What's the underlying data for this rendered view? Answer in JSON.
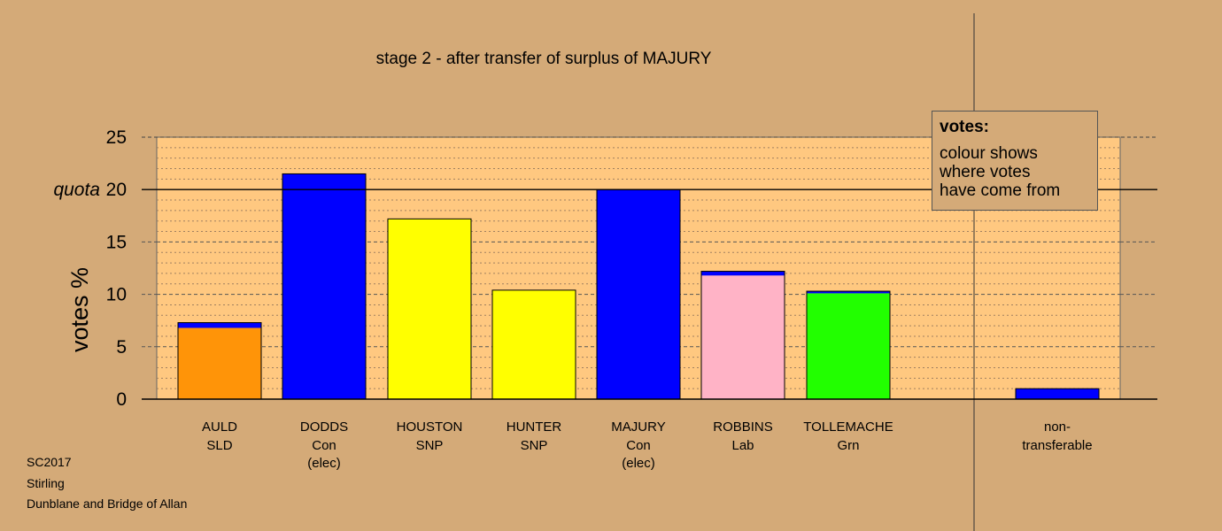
{
  "chart_data": {
    "type": "bar",
    "title": "stage 2 - after transfer of surplus of MAJURY",
    "ylabel": "votes %",
    "ylim": [
      0,
      25
    ],
    "yticks": [
      0,
      5,
      10,
      15,
      20,
      25
    ],
    "quota": {
      "value": 20,
      "label": "quota"
    },
    "categories": [
      {
        "name": "AULD",
        "party": "SLD",
        "note": ""
      },
      {
        "name": "DODDS",
        "party": "Con",
        "note": "(elec)"
      },
      {
        "name": "HOUSTON",
        "party": "SNP",
        "note": ""
      },
      {
        "name": "HUNTER",
        "party": "SNP",
        "note": ""
      },
      {
        "name": "MAJURY",
        "party": "Con",
        "note": "(elec)"
      },
      {
        "name": "ROBBINS",
        "party": "Lab",
        "note": ""
      },
      {
        "name": "TOLLEMACHE",
        "party": "Grn",
        "note": ""
      },
      {
        "name": "non-",
        "party": "transferable",
        "note": ""
      }
    ],
    "segments": [
      [
        {
          "value": 6.8,
          "color": "#ff9408"
        },
        {
          "value": 0.5,
          "color": "#0000ff"
        }
      ],
      [
        {
          "value": 21.5,
          "color": "#0000ff"
        }
      ],
      [
        {
          "value": 17.2,
          "color": "#ffff00"
        }
      ],
      [
        {
          "value": 10.4,
          "color": "#ffff00"
        }
      ],
      [
        {
          "value": 20.0,
          "color": "#0000ff"
        }
      ],
      [
        {
          "value": 11.8,
          "color": "#ffb3c6"
        },
        {
          "value": 0.4,
          "color": "#0000ff"
        }
      ],
      [
        {
          "value": 10.1,
          "color": "#22ff00"
        },
        {
          "value": 0.2,
          "color": "#0000ff"
        }
      ],
      [
        {
          "value": 1.0,
          "color": "#0000ff"
        }
      ]
    ],
    "grid": true,
    "legend_position": "top-right",
    "colors": {
      "background": "#d4aa78",
      "plot_area": "#ffc880",
      "quota_line": "#000000"
    }
  },
  "legend": {
    "title": "votes:",
    "lines": [
      "colour shows",
      "where votes",
      "have come from"
    ]
  },
  "footer": {
    "election": "SC2017",
    "council": "Stirling",
    "ward": "Dunblane and Bridge of Allan"
  }
}
